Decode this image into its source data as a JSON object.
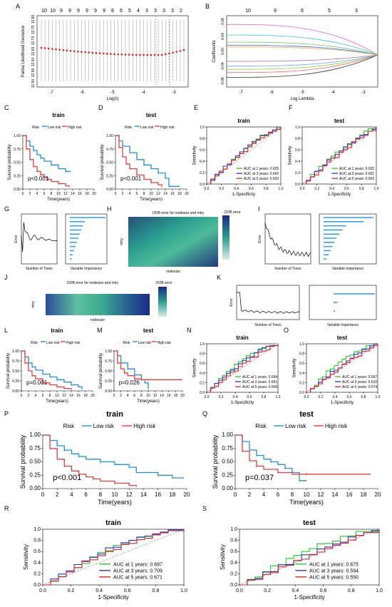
{
  "labels": {
    "A": "A",
    "B": "B",
    "C": "C",
    "D": "D",
    "E": "E",
    "F": "F",
    "G": "G",
    "H": "H",
    "I": "I",
    "J": "J",
    "K": "K",
    "L": "L",
    "M": "M",
    "N": "N",
    "O": "O",
    "P": "P",
    "Q": "Q",
    "R": "R",
    "S": "S"
  },
  "colors": {
    "low": "#1f8fe0",
    "high": "#f03c3c",
    "auc1": "#22cc22",
    "auc3": "#2233dd",
    "auc5": "#e82020",
    "cv": "#e02020",
    "heat_low": "#1e2a88",
    "heat_mid": "#2a9d8f",
    "heat_high": "#dcebe0",
    "bar": "#2a9df4"
  },
  "chart_data": [
    {
      "panel": "A",
      "type": "line",
      "xlabel": "Log(λ)",
      "ylabel": "Partial Likelihood Deviance",
      "top_ticks": [
        "10",
        "10",
        "9",
        "9",
        "9",
        "9",
        "9",
        "9",
        "8",
        "6",
        "5",
        "4",
        "3",
        "3",
        "3",
        "3",
        "2"
      ],
      "x_ticks": [
        "-7",
        "-6",
        "-5",
        "-4",
        "-3"
      ],
      "y_ticks": [
        "12.50",
        "12.55",
        "12.60",
        "12.65",
        "12.70",
        "12.75",
        "12.80"
      ]
    },
    {
      "panel": "B",
      "type": "line",
      "xlabel": "Log Lambda",
      "ylabel": "Coefficients",
      "top_ticks": [
        "10",
        "9",
        "6",
        "5",
        "3"
      ],
      "x_ticks": [
        "-7",
        "-6",
        "-5",
        "-4",
        "-3"
      ],
      "y_ticks": [
        "-0.08",
        "-0.04",
        "0.00",
        "0.04",
        "0.08"
      ]
    },
    {
      "panel": "C",
      "type": "line",
      "title": "train",
      "xlabel": "Time(years)",
      "ylabel": "Survival probability",
      "legend": [
        "Risk",
        "Low risk",
        "High risk"
      ],
      "pvalue": "p<0.001",
      "x_ticks": [
        "0",
        "2",
        "4",
        "6",
        "8",
        "10",
        "12",
        "14",
        "16",
        "18",
        "20"
      ],
      "y_ticks": [
        "0.00",
        "0.25",
        "0.50",
        "0.75",
        "1.00"
      ],
      "series": [
        {
          "name": "Low risk",
          "x": [
            0,
            1,
            2,
            3,
            4,
            5,
            6,
            8,
            10,
            12,
            13.5
          ],
          "y": [
            1,
            0.9,
            0.8,
            0.72,
            0.64,
            0.58,
            0.52,
            0.45,
            0.38,
            0.33,
            0.33
          ]
        },
        {
          "name": "High risk",
          "x": [
            0,
            1,
            2,
            3,
            4,
            5,
            6,
            7,
            8,
            10,
            12,
            13
          ],
          "y": [
            1,
            0.75,
            0.55,
            0.42,
            0.33,
            0.27,
            0.22,
            0.18,
            0.14,
            0.1,
            0.06,
            0.05
          ]
        }
      ]
    },
    {
      "panel": "D",
      "type": "line",
      "title": "test",
      "xlabel": "Time(years)",
      "ylabel": "Survival probability",
      "legend": [
        "Risk",
        "Low risk",
        "High risk"
      ],
      "pvalue": "p<0.001",
      "x_ticks": [
        "0",
        "2",
        "4",
        "6",
        "8",
        "10",
        "12",
        "14",
        "16",
        "18",
        "20"
      ],
      "y_ticks": [
        "0.00",
        "0.25",
        "0.50",
        "0.75",
        "1.00"
      ],
      "series": [
        {
          "name": "Low risk",
          "x": [
            0,
            1,
            2,
            4,
            6,
            8,
            10,
            12,
            14,
            15,
            18
          ],
          "y": [
            1,
            0.9,
            0.8,
            0.68,
            0.55,
            0.45,
            0.38,
            0.3,
            0.2,
            0.05,
            0.05
          ]
        },
        {
          "name": "High risk",
          "x": [
            0,
            1,
            2,
            3,
            4,
            6,
            8,
            10,
            12,
            13
          ],
          "y": [
            1,
            0.78,
            0.6,
            0.47,
            0.38,
            0.26,
            0.18,
            0.12,
            0.08,
            0.05
          ]
        }
      ]
    },
    {
      "panel": "E",
      "type": "line",
      "title": "train",
      "xlabel": "1-Specificity",
      "ylabel": "Sensitivity",
      "x_ticks": [
        "0.0",
        "0.2",
        "0.4",
        "0.6",
        "0.8",
        "1.0"
      ],
      "y_ticks": [
        "0.0",
        "0.2",
        "0.4",
        "0.6",
        "0.8",
        "1.0"
      ],
      "legend": [
        "AUC at 1 years: 0.625",
        "AUC at 3 years: 0.642",
        "AUC at 5 years: 0.603"
      ]
    },
    {
      "panel": "F",
      "type": "line",
      "title": "test",
      "xlabel": "1-Specificity",
      "ylabel": "Sensitivity",
      "x_ticks": [
        "0.0",
        "0.2",
        "0.4",
        "0.6",
        "0.8",
        "1.0"
      ],
      "y_ticks": [
        "0.0",
        "0.2",
        "0.4",
        "0.6",
        "0.8",
        "1.0"
      ],
      "legend": [
        "AUC at 1 years: 0.620",
        "AUC at 3 years: 0.601",
        "AUC at 5 years: 0.563"
      ]
    },
    {
      "panel": "G",
      "type": "bar",
      "xlabel": "Variable Importance",
      "lxlabel": "Number of Trees",
      "lylabel": "Error"
    },
    {
      "panel": "H",
      "type": "heatmap",
      "title": "OOB error for nodesize and mtry",
      "legend_title": "OOB error",
      "xlabel": "nodesize",
      "ylabel": "mtry"
    },
    {
      "panel": "I",
      "type": "bar",
      "xlabel": "Variable Importance",
      "lxlabel": "Number of Trees",
      "lylabel": "Error"
    },
    {
      "panel": "J",
      "type": "heatmap",
      "title": "OOB error for nodesize and mtry",
      "legend_title": "OOB error",
      "xlabel": "nodesize",
      "ylabel": "mtry"
    },
    {
      "panel": "K",
      "type": "bar",
      "xlabel": "Variable Importance",
      "lxlabel": "Number of Trees",
      "lylabel": "Error"
    },
    {
      "panel": "L",
      "type": "line",
      "title": "train",
      "xlabel": "Time(years)",
      "ylabel": "Survival probability",
      "legend": [
        "Risk",
        "Low risk",
        "High risk"
      ],
      "pvalue": "p=0.001",
      "x_ticks": [
        "0",
        "2",
        "4",
        "6",
        "8",
        "10",
        "12",
        "14",
        "16",
        "18",
        "20"
      ],
      "y_ticks": [
        "0.00",
        "0.25",
        "0.50",
        "0.75",
        "1.00"
      ],
      "series": [
        {
          "name": "Low risk",
          "x": [
            0,
            1,
            2,
            3,
            4,
            6,
            8,
            10,
            12,
            14,
            16,
            17
          ],
          "y": [
            1,
            0.85,
            0.7,
            0.6,
            0.52,
            0.42,
            0.35,
            0.28,
            0.22,
            0.15,
            0.1,
            0.05
          ]
        },
        {
          "name": "High risk",
          "x": [
            0,
            1,
            2,
            3,
            4,
            6,
            8,
            10,
            12,
            14
          ],
          "y": [
            1,
            0.7,
            0.5,
            0.38,
            0.3,
            0.2,
            0.15,
            0.1,
            0.06,
            0.04
          ]
        }
      ]
    },
    {
      "panel": "M",
      "type": "line",
      "title": "test",
      "xlabel": "Time(years)",
      "ylabel": "Survival probability",
      "legend": [
        "Risk",
        "Low risk",
        "High risk"
      ],
      "pvalue": "p=0.026",
      "x_ticks": [
        "0",
        "2",
        "4",
        "6",
        "8",
        "10",
        "12",
        "14",
        "16",
        "18",
        "20"
      ],
      "y_ticks": [
        "0.00",
        "0.25",
        "0.50",
        "0.75",
        "1.00"
      ],
      "series": [
        {
          "name": "Low risk",
          "x": [
            0,
            1,
            2,
            4,
            6,
            8,
            9,
            10
          ],
          "y": [
            1,
            0.88,
            0.7,
            0.55,
            0.4,
            0.28,
            0.2,
            0.05
          ]
        },
        {
          "name": "High risk",
          "x": [
            0,
            1,
            2,
            3,
            4,
            6,
            8,
            10,
            20
          ],
          "y": [
            1,
            0.7,
            0.55,
            0.45,
            0.38,
            0.3,
            0.28,
            0.28,
            0.28
          ]
        }
      ]
    },
    {
      "panel": "N",
      "type": "line",
      "title": "train",
      "xlabel": "1-Specificity",
      "ylabel": "Sensitivity",
      "x_ticks": [
        "0.0",
        "0.2",
        "0.4",
        "0.6",
        "0.8",
        "1.0"
      ],
      "y_ticks": [
        "0.0",
        "0.2",
        "0.4",
        "0.6",
        "0.8",
        "1.0"
      ],
      "legend": [
        "AUC at 1 years: 0.694",
        "AUC at 3 years: 0.661",
        "AUC at 5 years: 0.609"
      ]
    },
    {
      "panel": "O",
      "type": "line",
      "title": "test",
      "xlabel": "1-Specificity",
      "ylabel": "Sensitivity",
      "x_ticks": [
        "0.0",
        "0.2",
        "0.4",
        "0.6",
        "0.8",
        "1.0"
      ],
      "y_ticks": [
        "0.0",
        "0.2",
        "0.4",
        "0.6",
        "0.8",
        "1.0"
      ],
      "legend": [
        "AUC at 1 years: 0.697",
        "AUC at 3 years: 0.610",
        "AUC at 5 years: 0.574"
      ]
    },
    {
      "panel": "P",
      "type": "line",
      "title": "train",
      "xlabel": "Time(years)",
      "ylabel": "Survival probability",
      "legend": [
        "Risk",
        "Low risk",
        "High risk"
      ],
      "pvalue": "p<0.001",
      "x_ticks": [
        "0",
        "2",
        "4",
        "6",
        "8",
        "10",
        "12",
        "14",
        "16",
        "18",
        "20"
      ],
      "y_ticks": [
        "0.00",
        "0.25",
        "0.50",
        "0.75",
        "1.00"
      ],
      "series": [
        {
          "name": "Low risk",
          "x": [
            0,
            1,
            2,
            3,
            4,
            5,
            6,
            8,
            10,
            12,
            13,
            16,
            18,
            19.5
          ],
          "y": [
            1,
            0.9,
            0.8,
            0.72,
            0.65,
            0.6,
            0.55,
            0.5,
            0.45,
            0.4,
            0.3,
            0.25,
            0.2,
            0.2
          ]
        },
        {
          "name": "High risk",
          "x": [
            0,
            1,
            2,
            3,
            4,
            5,
            6,
            7,
            8,
            10,
            12,
            13
          ],
          "y": [
            1,
            0.75,
            0.55,
            0.42,
            0.33,
            0.27,
            0.22,
            0.18,
            0.14,
            0.1,
            0.06,
            0.05
          ]
        }
      ]
    },
    {
      "panel": "Q",
      "type": "line",
      "title": "test",
      "xlabel": "Time(years)",
      "ylabel": "Survival probability",
      "legend": [
        "Risk",
        "Low risk",
        "High risk"
      ],
      "pvalue": "p=0.037",
      "x_ticks": [
        "0",
        "2",
        "4",
        "6",
        "8",
        "10",
        "12",
        "14",
        "16",
        "18",
        "20"
      ],
      "y_ticks": [
        "0.00",
        "0.25",
        "0.50",
        "0.75",
        "1.00"
      ],
      "series": [
        {
          "name": "Low risk",
          "x": [
            0,
            1,
            2,
            3,
            4,
            5,
            6,
            7,
            8,
            9,
            10
          ],
          "y": [
            1,
            0.88,
            0.72,
            0.62,
            0.55,
            0.5,
            0.45,
            0.38,
            0.3,
            0.15,
            0.15
          ]
        },
        {
          "name": "High risk",
          "x": [
            0,
            1,
            2,
            3,
            4,
            6,
            8,
            10,
            19
          ],
          "y": [
            1,
            0.7,
            0.52,
            0.42,
            0.36,
            0.3,
            0.27,
            0.27,
            0.27
          ]
        }
      ]
    },
    {
      "panel": "R",
      "type": "line",
      "title": "train",
      "xlabel": "1-Specificity",
      "ylabel": "Sensitivity",
      "x_ticks": [
        "0.0",
        "0.2",
        "0.4",
        "0.6",
        "0.8",
        "1.0"
      ],
      "y_ticks": [
        "0.0",
        "0.2",
        "0.4",
        "0.6",
        "0.8",
        "1.0"
      ],
      "legend": [
        "AUC at 1 years: 0.697",
        "AUC at 3 years: 0.709",
        "AUC at 5 years: 0.671"
      ]
    },
    {
      "panel": "S",
      "type": "line",
      "title": "test",
      "xlabel": "1-Specificity",
      "ylabel": "Sensitivity",
      "x_ticks": [
        "0.0",
        "0.2",
        "0.4",
        "0.6",
        "0.8",
        "1.0"
      ],
      "y_ticks": [
        "0.0",
        "0.2",
        "0.4",
        "0.6",
        "0.8",
        "1.0"
      ],
      "legend": [
        "AUC at 1 years: 0.675",
        "AUC at 3 years: 0.594",
        "AUC at 5 years: 0.550"
      ]
    }
  ]
}
